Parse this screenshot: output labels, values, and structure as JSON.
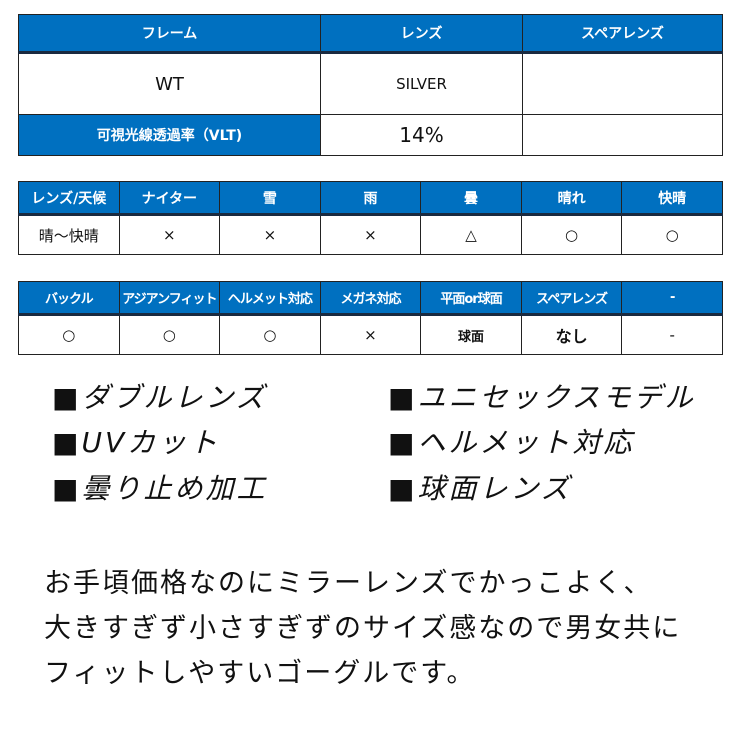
{
  "spec_table": {
    "headers": [
      "フレーム",
      "レンズ",
      "スペアレンズ"
    ],
    "values": [
      "WT",
      "SILVER",
      ""
    ],
    "vlt_label": "可視光線透過率（VLT)",
    "vlt_value": "14%",
    "vlt_extra": ""
  },
  "weather_table": {
    "headers": [
      "レンズ/天候",
      "ナイター",
      "雪",
      "雨",
      "曇",
      "晴れ",
      "快晴"
    ],
    "values": [
      "晴～快晴",
      "×",
      "×",
      "×",
      "△",
      "○",
      "○"
    ]
  },
  "feature_table": {
    "headers": [
      "バックル",
      "アジアンフィット",
      "ヘルメット対応",
      "メガネ対応",
      "平面or球面",
      "スペアレンズ",
      "-"
    ],
    "values": [
      "○",
      "○",
      "○",
      "×",
      "球面",
      "なし",
      "-"
    ]
  },
  "features": [
    "■ダブルレンズ",
    "■ユニセックスモデル",
    "■UVカット",
    "■ヘルメット対応",
    "■曇り止め加工",
    "■球面レンズ"
  ],
  "description": [
    "お手頃価格なのにミラーレンズでかっこよく、",
    "大きすぎず小さすぎずのサイズ感なので男女共に",
    "フィットしやすいゴーグルです。"
  ],
  "colors": {
    "header": "#0070c0"
  }
}
